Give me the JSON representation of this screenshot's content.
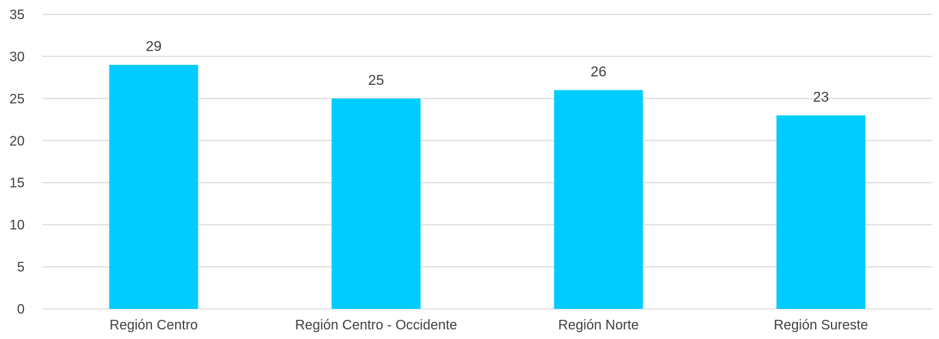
{
  "chart_data": {
    "type": "bar",
    "categories": [
      "Región Centro",
      "Región Centro - Occidente",
      "Región Norte",
      "Región Sureste"
    ],
    "values": [
      29,
      25,
      26,
      23
    ],
    "data_labels": [
      "29",
      "25",
      "26",
      "23"
    ],
    "ylim": [
      0,
      35
    ],
    "yticks": [
      0,
      5,
      10,
      15,
      20,
      25,
      30,
      35
    ],
    "ytick_labels": [
      "0",
      "5",
      "10",
      "15",
      "20",
      "25",
      "30",
      "35"
    ],
    "grid": true,
    "legend": "none",
    "bar_color": "#00ccff",
    "gridline_color": "#d9d9d9",
    "text_color": "#404040"
  }
}
